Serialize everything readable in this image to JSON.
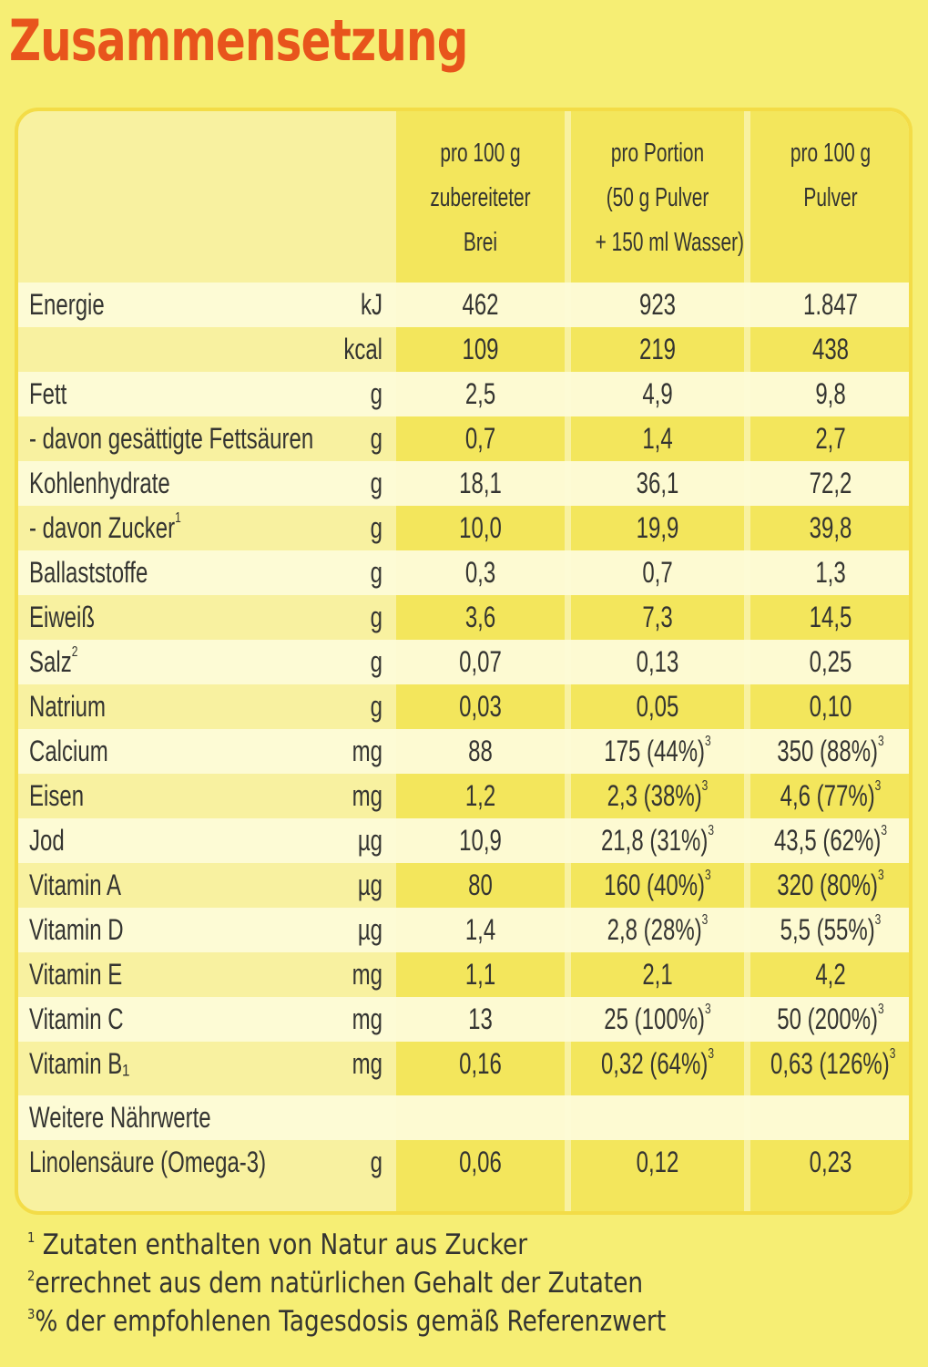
{
  "title": "Zusammensetzung",
  "columns": {
    "c1": [
      "pro 100 g",
      "zubereiteter",
      "Brei"
    ],
    "c2": [
      "pro Portion",
      "(50 g Pulver",
      "+ 150 ml Wasser)"
    ],
    "c3": [
      "pro 100 g",
      "Pulver"
    ]
  },
  "rows": [
    {
      "label": "Energie",
      "unit": "kJ",
      "c1": "462",
      "c2": "923",
      "c3": "1.847"
    },
    {
      "label": "",
      "unit": "kcal",
      "c1": "109",
      "c2": "219",
      "c3": "438"
    },
    {
      "label": "Fett",
      "unit": "g",
      "c1": "2,5",
      "c2": "4,9",
      "c3": "9,8"
    },
    {
      "label": "- davon gesättigte Fettsäuren",
      "unit": "g",
      "c1": "0,7",
      "c2": "1,4",
      "c3": "2,7"
    },
    {
      "label": "Kohlenhydrate",
      "unit": "g",
      "c1": "18,1",
      "c2": "36,1",
      "c3": "72,2"
    },
    {
      "label": "- davon Zucker",
      "label_sup": "1",
      "unit": "g",
      "c1": "10,0",
      "c2": "19,9",
      "c3": "39,8"
    },
    {
      "label": "Ballaststoffe",
      "unit": "g",
      "c1": "0,3",
      "c2": "0,7",
      "c3": "1,3"
    },
    {
      "label": "Eiweiß",
      "unit": "g",
      "c1": "3,6",
      "c2": "7,3",
      "c3": "14,5"
    },
    {
      "label": "Salz",
      "label_sup": "2",
      "unit": "g",
      "c1": "0,07",
      "c2": "0,13",
      "c3": "0,25"
    },
    {
      "label": "Natrium",
      "unit": "g",
      "c1": "0,03",
      "c2": "0,05",
      "c3": "0,10"
    },
    {
      "label": "Calcium",
      "unit": "mg",
      "c1": "88",
      "c2": "175 (44%)",
      "c2_sup": "3",
      "c3": "350 (88%)",
      "c3_sup": "3"
    },
    {
      "label": "Eisen",
      "unit": "mg",
      "c1": "1,2",
      "c2": "2,3 (38%)",
      "c2_sup": "3",
      "c3": "4,6 (77%)",
      "c3_sup": "3"
    },
    {
      "label": "Jod",
      "unit": "µg",
      "c1": "10,9",
      "c2": "21,8 (31%)",
      "c2_sup": "3",
      "c3": "43,5 (62%)",
      "c3_sup": "3"
    },
    {
      "label": "Vitamin A",
      "unit": "µg",
      "c1": "80",
      "c2": "160 (40%)",
      "c2_sup": "3",
      "c3": "320 (80%)",
      "c3_sup": "3"
    },
    {
      "label": "Vitamin D",
      "unit": "µg",
      "c1": "1,4",
      "c2": "2,8 (28%)",
      "c2_sup": "3",
      "c3": "5,5 (55%)",
      "c3_sup": "3"
    },
    {
      "label": "Vitamin E",
      "unit": "mg",
      "c1": "1,1",
      "c2": "2,1",
      "c3": "4,2"
    },
    {
      "label": "Vitamin C",
      "unit": "mg",
      "c1": "13",
      "c2": "25 (100%)",
      "c2_sup": "3",
      "c3": "50 (200%)",
      "c3_sup": "3"
    },
    {
      "label": "Vitamin B₁",
      "unit": "mg",
      "c1": "0,16",
      "c2": "0,32 (64%)",
      "c2_sup": "3",
      "c3": "0,63 (126%)",
      "c3_sup": "3"
    },
    {
      "label": "Weitere Nährwerte",
      "unit": "",
      "c1": "",
      "c2": "",
      "c3": ""
    },
    {
      "label": "Linolensäure (Omega-3)",
      "unit": "g",
      "c1": "0,06",
      "c2": "0,12",
      "c3": "0,23"
    }
  ],
  "footnotes": [
    {
      "mark": "1",
      "text": " Zutaten enthalten von Natur aus Zucker"
    },
    {
      "mark": "2",
      "text": "errechnet aus dem natürlichen Gehalt der Zutaten"
    },
    {
      "mark": "3",
      "text": "% der empfohlenen Tagesdosis gemäß Referenzwert"
    }
  ],
  "colors": {
    "title": "#e8541c",
    "background": "#f6ee74",
    "band": "#fdfbd8"
  }
}
